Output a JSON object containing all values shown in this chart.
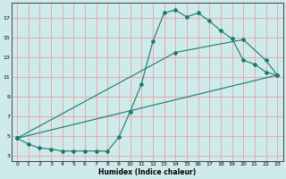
{
  "xlabel": "Humidex (Indice chaleur)",
  "bg_color": "#ceeaea",
  "grid_color": "#e8aaaa",
  "line_color": "#1a7a6e",
  "xlim": [
    -0.5,
    23.5
  ],
  "ylim": [
    2.5,
    18.5
  ],
  "yticks": [
    3,
    5,
    7,
    9,
    11,
    13,
    15,
    17
  ],
  "xticks": [
    0,
    1,
    2,
    3,
    4,
    5,
    6,
    7,
    8,
    9,
    10,
    11,
    12,
    13,
    14,
    15,
    16,
    17,
    18,
    19,
    20,
    21,
    22,
    23
  ],
  "series1_x": [
    0,
    1,
    2,
    3,
    4,
    5,
    6,
    7,
    8,
    9,
    10,
    11,
    12,
    13,
    14,
    15,
    16,
    17,
    18,
    19,
    20,
    21,
    22,
    23
  ],
  "series1_y": [
    4.8,
    4.2,
    3.8,
    3.7,
    3.5,
    3.5,
    3.5,
    3.5,
    3.5,
    4.9,
    7.5,
    10.3,
    14.6,
    17.5,
    17.8,
    17.1,
    17.5,
    16.7,
    15.7,
    14.9,
    12.7,
    12.3,
    11.5,
    11.2
  ],
  "series2_x": [
    0,
    23
  ],
  "series2_y": [
    4.8,
    11.2
  ],
  "series3_x": [
    0,
    14,
    20,
    22,
    23
  ],
  "series3_y": [
    4.8,
    13.5,
    14.8,
    12.7,
    11.2
  ]
}
